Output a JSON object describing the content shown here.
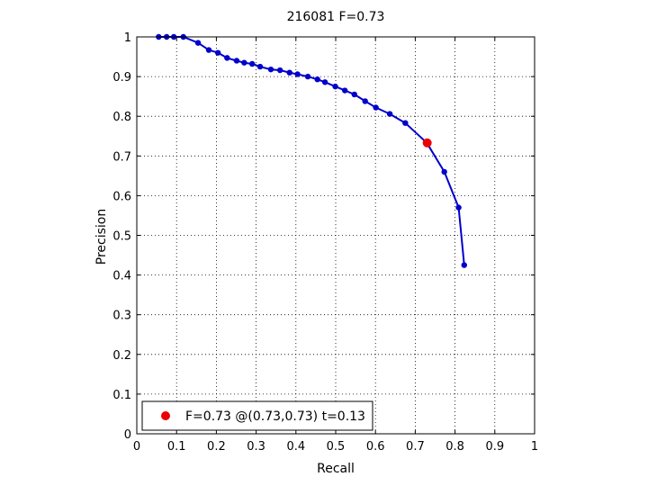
{
  "chart_data": {
    "type": "line",
    "title": "216081 F=0.73",
    "xlabel": "Recall",
    "ylabel": "Precision",
    "xlim": [
      0,
      1
    ],
    "ylim": [
      0,
      1
    ],
    "grid": true,
    "x_ticks": [
      "0",
      "0.1",
      "0.2",
      "0.3",
      "0.4",
      "0.5",
      "0.6",
      "0.7",
      "0.8",
      "0.9",
      "1"
    ],
    "y_ticks": [
      "0",
      "0.1",
      "0.2",
      "0.3",
      "0.4",
      "0.5",
      "0.6",
      "0.7",
      "0.8",
      "0.9",
      "1"
    ],
    "series": [
      {
        "color": "#0000cc",
        "points": [
          [
            0.055,
            1.0
          ],
          [
            0.075,
            1.0
          ],
          [
            0.093,
            1.0
          ],
          [
            0.117,
            1.0
          ],
          [
            0.154,
            0.985
          ],
          [
            0.181,
            0.967
          ],
          [
            0.204,
            0.96
          ],
          [
            0.227,
            0.947
          ],
          [
            0.251,
            0.94
          ],
          [
            0.27,
            0.935
          ],
          [
            0.29,
            0.932
          ],
          [
            0.31,
            0.925
          ],
          [
            0.337,
            0.918
          ],
          [
            0.36,
            0.916
          ],
          [
            0.384,
            0.91
          ],
          [
            0.404,
            0.906
          ],
          [
            0.43,
            0.9
          ],
          [
            0.454,
            0.893
          ],
          [
            0.473,
            0.886
          ],
          [
            0.499,
            0.875
          ],
          [
            0.523,
            0.865
          ],
          [
            0.547,
            0.855
          ],
          [
            0.574,
            0.838
          ],
          [
            0.601,
            0.822
          ],
          [
            0.636,
            0.806
          ],
          [
            0.675,
            0.783
          ],
          [
            0.729,
            0.733
          ],
          [
            0.773,
            0.66
          ],
          [
            0.809,
            0.57
          ],
          [
            0.823,
            0.425
          ]
        ]
      }
    ],
    "best_point": {
      "x": 0.73,
      "y": 0.733,
      "color": "#ee0000"
    },
    "legend": {
      "placement": "bottom-left",
      "text": "F=0.73 @(0.73,0.73) t=0.13"
    }
  }
}
